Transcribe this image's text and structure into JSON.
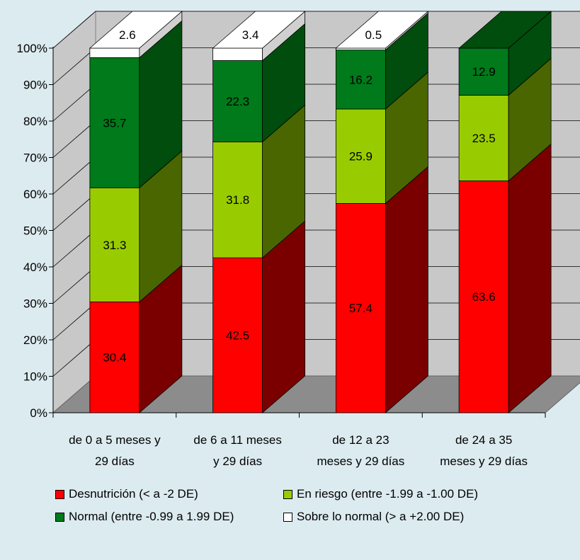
{
  "chart_data": {
    "type": "bar",
    "stacked": true,
    "three_d": true,
    "categories": [
      "de 0 a 5 meses y 29 días",
      "de 6 a 11 meses y 29 días",
      "de 12 a 23 meses y 29 días",
      "de 24 a 35 meses y 29 días"
    ],
    "category_lines": [
      [
        "de 0 a 5 meses y",
        "29 días"
      ],
      [
        "de 6 a 11 meses",
        "y 29 días"
      ],
      [
        "de 12 a 23",
        "meses y 29 días"
      ],
      [
        "de 24 a 35",
        "meses y 29 días"
      ]
    ],
    "series": [
      {
        "name": "Desnutrición (< a -2 DE)",
        "color": "#ff0000",
        "side_color": "#7a0000",
        "values": [
          30.4,
          42.5,
          57.4,
          63.6
        ]
      },
      {
        "name": "En riesgo (entre -1.99 a -1.00 DE)",
        "color": "#99cc00",
        "side_color": "#4a6600",
        "values": [
          31.3,
          31.8,
          25.9,
          23.5
        ]
      },
      {
        "name": "Normal (entre -0.99 a 1.99 DE)",
        "color": "#007a1a",
        "side_color": "#004d0d",
        "values": [
          35.7,
          22.3,
          16.2,
          12.9
        ]
      },
      {
        "name": "Sobre lo normal (> a +2.00 DE)",
        "color": "#ffffff",
        "side_color": "#d0d0d0",
        "values": [
          2.6,
          3.4,
          0.5,
          0
        ]
      }
    ],
    "data_labels": [
      [
        "30.4",
        "42.5",
        "57.4",
        "63.6"
      ],
      [
        "31.3",
        "31.8",
        "25.9",
        "23.5"
      ],
      [
        "35.7",
        "22.3",
        "16.2",
        "12.9"
      ],
      [
        "2.6",
        "3.4",
        "0.5",
        ""
      ]
    ],
    "y_ticks": [
      "0%",
      "10%",
      "20%",
      "30%",
      "40%",
      "50%",
      "60%",
      "70%",
      "80%",
      "90%",
      "100%"
    ],
    "ylim": [
      0,
      100
    ],
    "grid": true,
    "legend_position": "bottom",
    "wall_color": "#c8c8c8",
    "floor_color": "#8c8c8c"
  }
}
